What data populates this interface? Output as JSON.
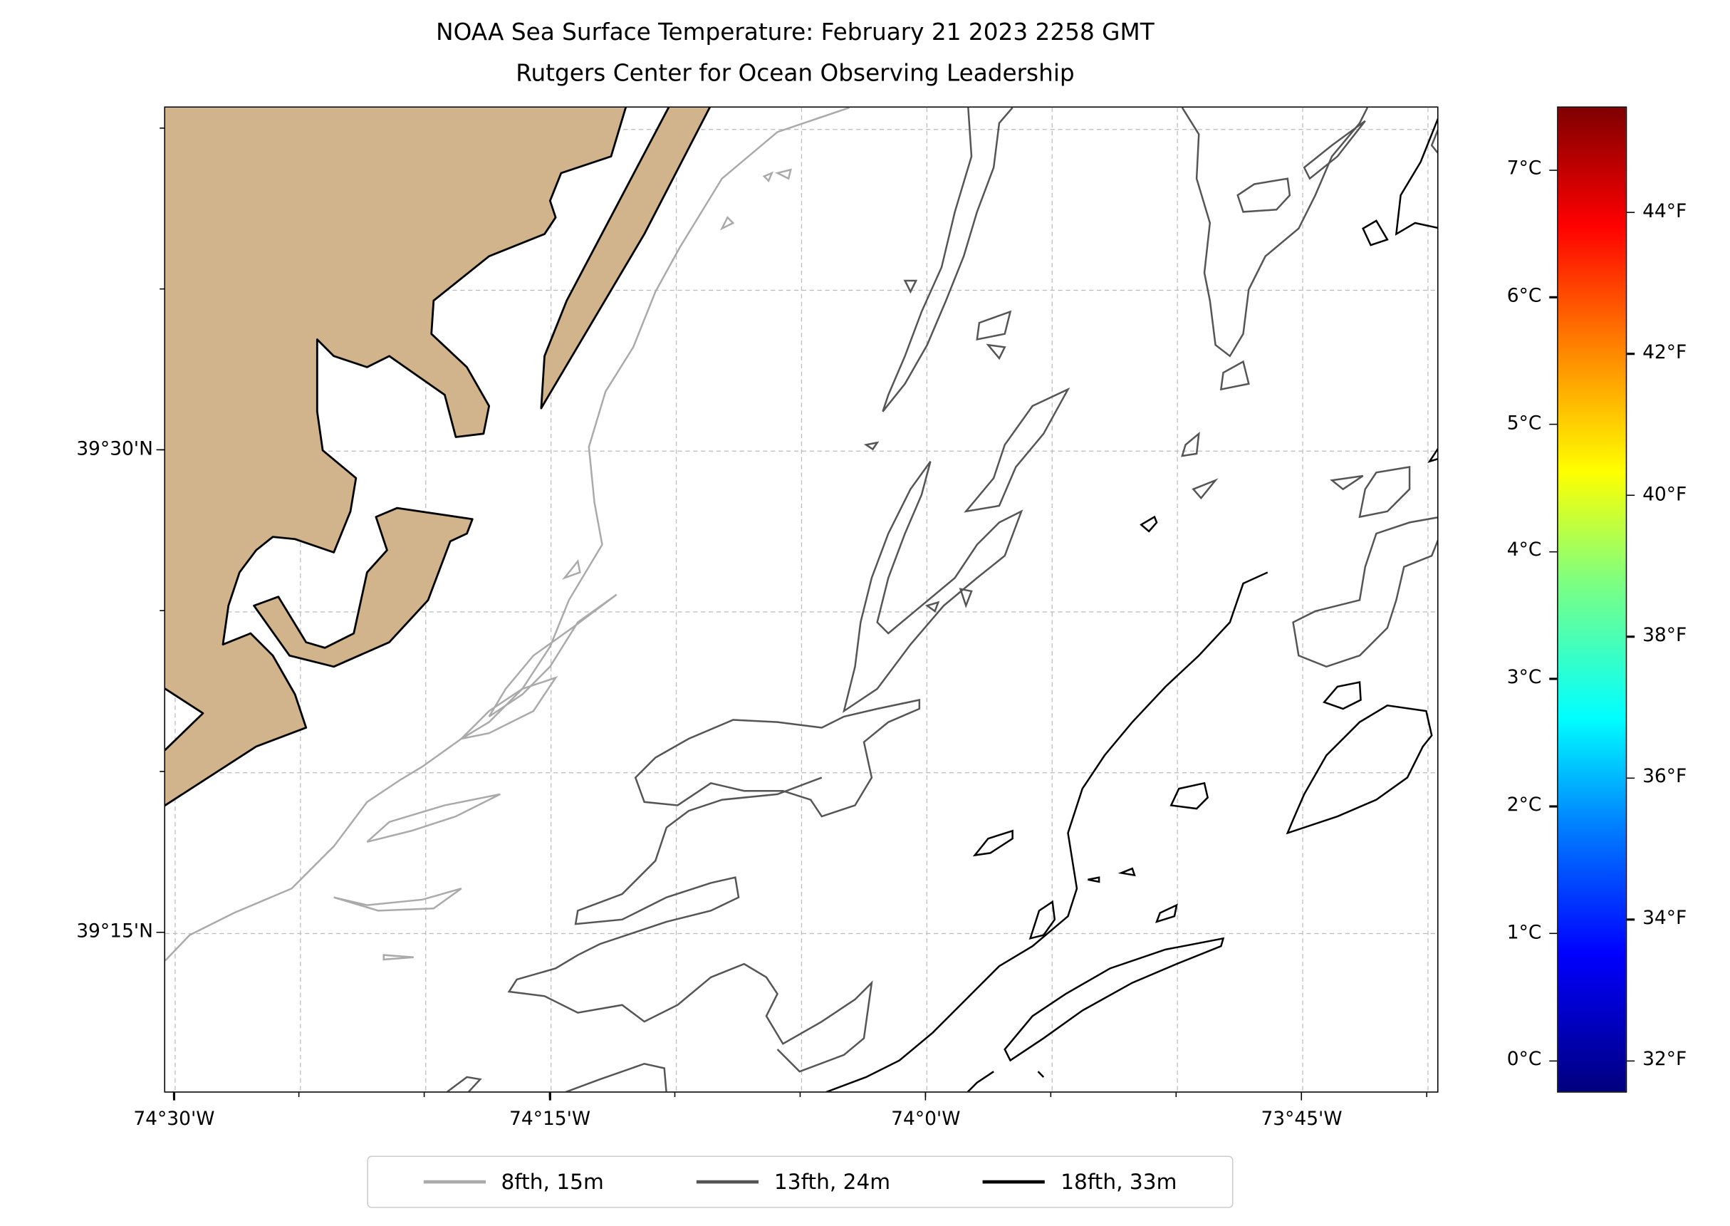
{
  "title": {
    "line1": "NOAA Sea Surface Temperature: February 21 2023 2258 GMT",
    "line2": "Rutgers Center for Ocean Observing Leadership"
  },
  "map": {
    "lon_range": [
      -74.5066,
      -73.659
    ],
    "lat_range": [
      39.167,
      39.678
    ],
    "land_color": "#D2B48C",
    "lon_ticks": [
      {
        "value": -74.5,
        "label": "74°30'W"
      },
      {
        "value": -74.25,
        "label": "74°15'W"
      },
      {
        "value": -74.0,
        "label": "74°0'W"
      },
      {
        "value": -73.75,
        "label": "73°45'W"
      }
    ],
    "lat_ticks": [
      {
        "value": 39.5,
        "label": "39°30'N"
      },
      {
        "value": 39.25,
        "label": "39°15'N"
      }
    ],
    "grid_lon_step_minutes": 5,
    "grid_lat_step_minutes": 5
  },
  "colorbar": {
    "cmap": "jet",
    "range_c": [
      -0.25,
      7.5
    ],
    "celsius_ticks": [
      {
        "value": 0,
        "label": "0°C"
      },
      {
        "value": 1,
        "label": "1°C"
      },
      {
        "value": 2,
        "label": "2°C"
      },
      {
        "value": 3,
        "label": "3°C"
      },
      {
        "value": 4,
        "label": "4°C"
      },
      {
        "value": 5,
        "label": "5°C"
      },
      {
        "value": 6,
        "label": "6°C"
      },
      {
        "value": 7,
        "label": "7°C"
      }
    ],
    "fahrenheit_ticks": [
      {
        "value": 32,
        "label": "32°F"
      },
      {
        "value": 34,
        "label": "34°F"
      },
      {
        "value": 36,
        "label": "36°F"
      },
      {
        "value": 38,
        "label": "38°F"
      },
      {
        "value": 40,
        "label": "40°F"
      },
      {
        "value": 42,
        "label": "42°F"
      },
      {
        "value": 44,
        "label": "44°F"
      }
    ]
  },
  "legend": {
    "items": [
      {
        "label": "8fth, 15m",
        "color": "#aaaaaa"
      },
      {
        "label": "13fth, 24m",
        "color": "#555555"
      },
      {
        "label": "18fth, 33m",
        "color": "#000000"
      }
    ]
  }
}
